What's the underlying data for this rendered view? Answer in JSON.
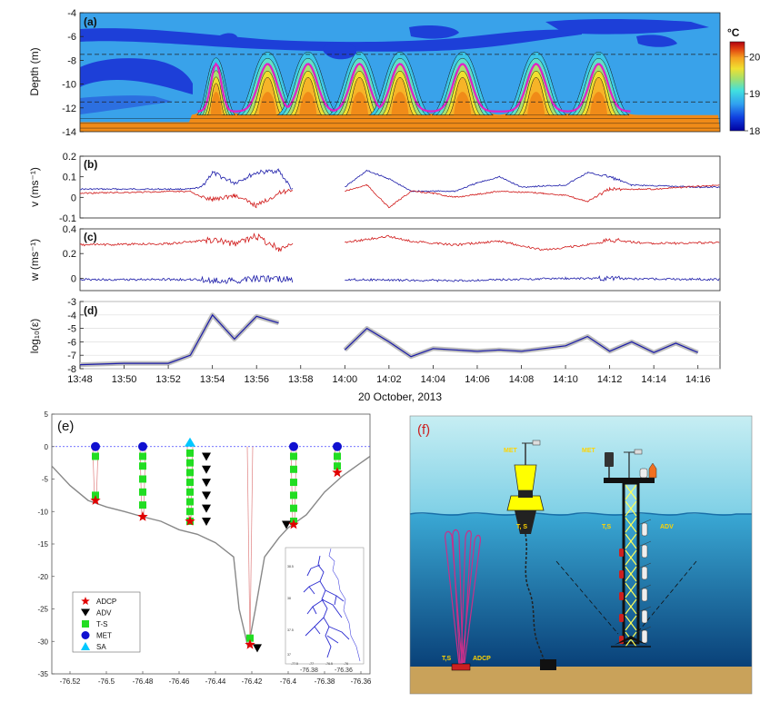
{
  "chart_data": [
    {
      "panel": "(a)",
      "type": "heatmap",
      "ylabel": "Depth (m)",
      "yticks": [
        -4,
        -6,
        -8,
        -10,
        -12,
        -14
      ],
      "ylim": [
        -14,
        -4
      ],
      "xlim": [
        "13:48",
        "14:17"
      ],
      "colorbar": {
        "unit": "°C",
        "ticks": [
          20,
          19,
          18
        ],
        "range": [
          18,
          20.4
        ],
        "colors": [
          "#0000a0",
          "#1e5fe0",
          "#39a8f0",
          "#5ad8d8",
          "#a8e06a",
          "#f0e030",
          "#f5a020",
          "#e85010",
          "#c80010"
        ]
      },
      "dashed_depths": [
        -7.5,
        -11.5
      ],
      "isopycnal_color": "#e020c8",
      "pulse_times": [
        "13:54:10",
        "13:56:30",
        "13:58:20",
        "14:00:40",
        "14:02:30",
        "14:05:20",
        "14:08:40",
        "14:11:30"
      ]
    },
    {
      "panel": "(b)",
      "type": "line",
      "ylabel": "v (ms⁻¹)",
      "yticks": [
        0.2,
        0.1,
        0,
        -0.1
      ],
      "ylim": [
        -0.1,
        0.2
      ],
      "series": [
        {
          "color": "#1a1aa8",
          "points": [
            [
              "13:48",
              0.04
            ],
            [
              "13:53",
              0.04
            ],
            [
              "13:53:30",
              0.05
            ],
            [
              "13:54",
              0.12
            ],
            [
              "13:55",
              0.07
            ],
            [
              "13:56",
              0.12
            ],
            [
              "13:57",
              0.13
            ],
            [
              "13:57:40",
              0.03
            ]
          ]
        },
        {
          "color": "#1a1aa8",
          "points": [
            [
              "14:00",
              0.05
            ],
            [
              "14:01",
              0.13
            ],
            [
              "14:02",
              0.09
            ],
            [
              "14:03",
              0.03
            ],
            [
              "14:05",
              0.03
            ],
            [
              "14:06",
              0.07
            ],
            [
              "14:07",
              0.1
            ],
            [
              "14:08",
              0.05
            ],
            [
              "14:10",
              0.06
            ],
            [
              "14:11",
              0.12
            ],
            [
              "14:12",
              0.1
            ],
            [
              "14:13",
              0.06
            ],
            [
              "14:16",
              0.05
            ],
            [
              "14:17",
              0.05
            ]
          ]
        },
        {
          "color": "#d01818",
          "points": [
            [
              "13:48",
              0.02
            ],
            [
              "13:53",
              0.03
            ],
            [
              "13:53:30",
              0.0
            ],
            [
              "13:54",
              -0.01
            ],
            [
              "13:55",
              0.01
            ],
            [
              "13:56",
              -0.04
            ],
            [
              "13:57",
              0.02
            ],
            [
              "13:57:40",
              0.04
            ]
          ]
        },
        {
          "color": "#d01818",
          "points": [
            [
              "14:00",
              0.03
            ],
            [
              "14:01",
              0.06
            ],
            [
              "14:02",
              -0.05
            ],
            [
              "14:03",
              0.03
            ],
            [
              "14:04",
              0.02
            ],
            [
              "14:05",
              0.0
            ],
            [
              "14:07",
              0.03
            ],
            [
              "14:09",
              0.02
            ],
            [
              "14:10",
              0.01
            ],
            [
              "14:11",
              -0.02
            ],
            [
              "14:12",
              0.04
            ],
            [
              "14:14",
              0.04
            ],
            [
              "14:17",
              0.06
            ]
          ]
        }
      ]
    },
    {
      "panel": "(c)",
      "type": "line",
      "ylabel": "w (ms⁻¹)",
      "yticks": [
        0.4,
        0.2,
        0
      ],
      "ylim": [
        -0.1,
        0.4
      ],
      "series": [
        {
          "color": "#d01818",
          "points": [
            [
              "13:48",
              0.27
            ],
            [
              "13:52",
              0.28
            ],
            [
              "13:54",
              0.31
            ],
            [
              "13:55",
              0.28
            ],
            [
              "13:56",
              0.34
            ],
            [
              "13:57",
              0.24
            ],
            [
              "13:57:40",
              0.28
            ]
          ]
        },
        {
          "color": "#d01818",
          "points": [
            [
              "14:00",
              0.29
            ],
            [
              "14:02",
              0.34
            ],
            [
              "14:03",
              0.3
            ],
            [
              "14:05",
              0.27
            ],
            [
              "14:07",
              0.3
            ],
            [
              "14:09",
              0.23
            ],
            [
              "14:11",
              0.27
            ],
            [
              "14:12",
              0.31
            ],
            [
              "14:14",
              0.28
            ],
            [
              "14:17",
              0.29
            ]
          ]
        },
        {
          "color": "#1a1aa8",
          "points": [
            [
              "13:48",
              -0.01
            ],
            [
              "13:53",
              -0.01
            ],
            [
              "13:55",
              -0.02
            ],
            [
              "13:56",
              0.0
            ],
            [
              "13:57:40",
              -0.01
            ]
          ]
        },
        {
          "color": "#1a1aa8",
          "points": [
            [
              "14:00",
              -0.01
            ],
            [
              "14:05",
              -0.02
            ],
            [
              "14:10",
              0.0
            ],
            [
              "14:17",
              -0.01
            ]
          ]
        }
      ]
    },
    {
      "panel": "(d)",
      "type": "line",
      "ylabel": "log₁₀(ε)",
      "yticks": [
        -3,
        -4,
        -5,
        -6,
        -7,
        -8
      ],
      "ylim": [
        -8,
        -3
      ],
      "xticks": [
        "13:48",
        "13:50",
        "13:52",
        "13:54",
        "13:56",
        "13:58",
        "14:00",
        "14:02",
        "14:04",
        "14:06",
        "14:08",
        "14:10",
        "14:12",
        "14:14",
        "14:16"
      ],
      "xlabel": "20 October, 2013",
      "series": [
        {
          "color": "#1a1aa8",
          "band_color": "#bdbdbd",
          "points": [
            [
              "13:48",
              -7.7
            ],
            [
              "13:50",
              -7.6
            ],
            [
              "13:52",
              -7.6
            ],
            [
              "13:53",
              -7.0
            ],
            [
              "13:54",
              -4.0
            ],
            [
              "13:55",
              -5.8
            ],
            [
              "13:56",
              -4.1
            ],
            [
              "13:57",
              -4.6
            ]
          ]
        },
        {
          "color": "#1a1aa8",
          "band_color": "#bdbdbd",
          "points": [
            [
              "14:00",
              -6.6
            ],
            [
              "14:01",
              -5.0
            ],
            [
              "14:02",
              -6.0
            ],
            [
              "14:03",
              -7.1
            ],
            [
              "14:04",
              -6.5
            ],
            [
              "14:05",
              -6.6
            ],
            [
              "14:06",
              -6.7
            ],
            [
              "14:07",
              -6.6
            ],
            [
              "14:08",
              -6.7
            ],
            [
              "14:09",
              -6.5
            ],
            [
              "14:10",
              -6.3
            ],
            [
              "14:11",
              -5.6
            ],
            [
              "14:12",
              -6.7
            ],
            [
              "14:13",
              -6.0
            ],
            [
              "14:14",
              -6.8
            ],
            [
              "14:15",
              -6.1
            ],
            [
              "14:16",
              -6.8
            ]
          ]
        }
      ]
    },
    {
      "panel": "(e)",
      "type": "scatter",
      "xticks": [
        -76.52,
        -76.5,
        -76.48,
        -76.46,
        -76.44,
        -76.42,
        -76.4,
        -76.38,
        -76.36
      ],
      "yticks": [
        5,
        0,
        -5,
        -10,
        -15,
        -20,
        -25,
        -30,
        -35
      ],
      "xlim": [
        -76.53,
        -76.355
      ],
      "ylim": [
        -35,
        5
      ],
      "bathymetry": [
        [
          -76.53,
          -3
        ],
        [
          -76.52,
          -6
        ],
        [
          -76.51,
          -8.3
        ],
        [
          -76.5,
          -9.3
        ],
        [
          -76.49,
          -10
        ],
        [
          -76.48,
          -10.8
        ],
        [
          -76.47,
          -11.5
        ],
        [
          -76.46,
          -12.8
        ],
        [
          -76.45,
          -13.5
        ],
        [
          -76.44,
          -14.8
        ],
        [
          -76.43,
          -17
        ],
        [
          -76.427,
          -25
        ],
        [
          -76.422,
          -31
        ],
        [
          -76.418,
          -25
        ],
        [
          -76.413,
          -17
        ],
        [
          -76.405,
          -14
        ],
        [
          -76.4,
          -12.5
        ],
        [
          -76.39,
          -10.5
        ],
        [
          -76.38,
          -7
        ],
        [
          -76.37,
          -4.5
        ],
        [
          -76.36,
          -2.5
        ],
        [
          -76.355,
          -1.5
        ]
      ],
      "stations": [
        {
          "lon": -76.506,
          "bottom": -8.3,
          "ts": [
            -1.5,
            -7.5
          ],
          "met": true
        },
        {
          "lon": -76.48,
          "bottom": -10.8,
          "ts": [
            -1.5,
            -3,
            -5,
            -7,
            -9
          ],
          "met": true
        },
        {
          "lon": -76.454,
          "bottom": -11.5,
          "ts": [
            -1,
            -2.5,
            -4,
            -5.5,
            -7,
            -8.5,
            -10,
            -11.5
          ],
          "sa": true,
          "adv": [
            -1.5,
            -3.5,
            -5.5,
            -7.5,
            -9.5,
            -11.5
          ]
        },
        {
          "lon": -76.421,
          "bottom": -30.5,
          "ts": [
            -29.5
          ],
          "adv_bottom": -31
        },
        {
          "lon": -76.397,
          "bottom": -12,
          "ts": [
            -1.5,
            -3.5,
            -5.5,
            -7.5,
            -9.5,
            -11.5
          ],
          "met": true,
          "adv_bottom": -12
        },
        {
          "lon": -76.373,
          "bottom": -4,
          "ts": [
            -1.5,
            -3
          ],
          "met": true
        }
      ],
      "legend": [
        "ADCP",
        "ADV",
        "T-S",
        "MET",
        "SA"
      ],
      "legend_colors": [
        "#e00000",
        "#000000",
        "#22dd22",
        "#1010d0",
        "#00c8ff"
      ],
      "inset": {
        "xticks": [
          "-76.38",
          "-76.36"
        ],
        "ticks_x": [
          "-77.5",
          "-77",
          "-76.5",
          "-76"
        ],
        "ticks_y": [
          "38.5",
          "38",
          "37.5",
          "37"
        ]
      }
    },
    {
      "panel": "(f)",
      "type": "diagram",
      "labels": [
        "MET",
        "T, S",
        "MET",
        "T,S",
        "ADV",
        "T,S",
        "ADCP"
      ],
      "colors": {
        "sky": "#9fdde8",
        "water_top": "#4ab3d9",
        "water_bottom": "#0a4f8a",
        "seabed": "#c9a25a",
        "buoy": "#ffff00",
        "tower_cross": "#ffff55",
        "beam": "#c8308a"
      }
    }
  ]
}
